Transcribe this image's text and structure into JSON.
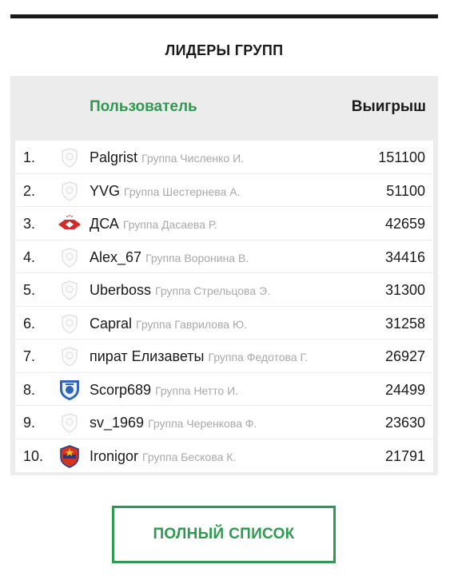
{
  "widget": {
    "title": "ЛИДЕРЫ ГРУПП",
    "columns": {
      "user": "Пользователь",
      "winnings": "Выигрыш"
    },
    "rows": [
      {
        "rank": "1.",
        "badge": "shield-placeholder-icon",
        "name": "Palgrist",
        "group": "Группа Численко И.",
        "score": "151100"
      },
      {
        "rank": "2.",
        "badge": "shield-placeholder-icon",
        "name": "YVG",
        "group": "Группа Шестернева А.",
        "score": "51100"
      },
      {
        "rank": "3.",
        "badge": "spartak-club-icon",
        "name": "ДСА",
        "group": "Группа Дасаева Р.",
        "score": "42659"
      },
      {
        "rank": "4.",
        "badge": "shield-placeholder-icon",
        "name": "Alex_67",
        "group": "Группа Воронина В.",
        "score": "34416"
      },
      {
        "rank": "5.",
        "badge": "shield-placeholder-icon",
        "name": "Uberboss",
        "group": "Группа Стрельцова Э.",
        "score": "31300"
      },
      {
        "rank": "6.",
        "badge": "shield-placeholder-icon",
        "name": "Capral",
        "group": "Группа Гаврилова Ю.",
        "score": "31258"
      },
      {
        "rank": "7.",
        "badge": "shield-placeholder-icon",
        "name": "пират Елизаветы",
        "group": "Группа Федотова Г.",
        "score": "26927"
      },
      {
        "rank": "8.",
        "badge": "dynamo-club-icon",
        "name": "Scorp689",
        "group": "Группа Нетто И.",
        "score": "24499"
      },
      {
        "rank": "9.",
        "badge": "shield-placeholder-icon",
        "name": "sv_1969",
        "group": "Группа Черенкова Ф.",
        "score": "23630"
      },
      {
        "rank": "10.",
        "badge": "cska-club-icon",
        "name": "Ironigor",
        "group": "Группа Бескова К.",
        "score": "21791"
      }
    ],
    "full_list_label": "ПОЛНЫЙ СПИСОК"
  },
  "colors": {
    "accent_green": "#2e9a4f",
    "header_bg": "#ececec",
    "muted_text": "#a9a9a9",
    "top_bar": "#1a1a1a"
  }
}
